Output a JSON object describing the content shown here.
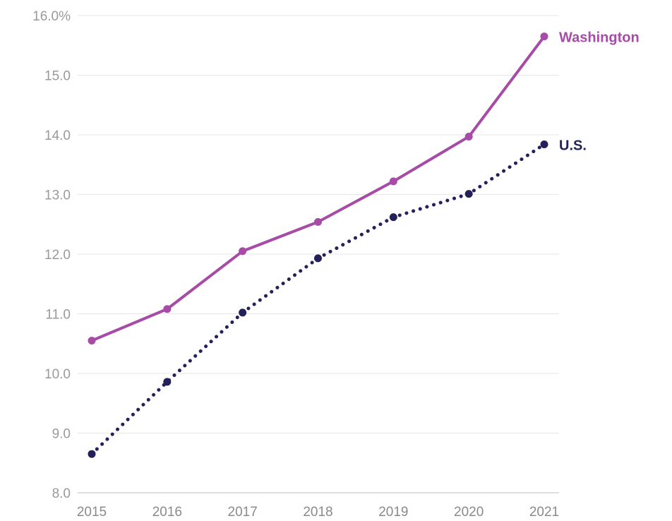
{
  "chart_data": {
    "type": "line",
    "x": [
      "2015",
      "2016",
      "2017",
      "2018",
      "2019",
      "2020",
      "2021"
    ],
    "ylim": [
      8.0,
      16.0
    ],
    "yticks": [
      8,
      9,
      10,
      11,
      12,
      13,
      14,
      15,
      16
    ],
    "ytick_labels": [
      "8.0",
      "9.0",
      "10.0",
      "11.0",
      "12.0",
      "13.0",
      "14.0",
      "15.0",
      "16.0%"
    ],
    "grid": "horizontal",
    "series": [
      {
        "name": "Washington",
        "values": [
          10.55,
          11.08,
          12.05,
          12.54,
          13.22,
          13.97,
          15.65
        ],
        "color": "#a64ca6",
        "style": "solid"
      },
      {
        "name": "U.S.",
        "values": [
          8.65,
          9.86,
          11.02,
          11.93,
          12.62,
          13.01,
          13.84
        ],
        "color": "#23205a",
        "style": "dotted"
      }
    ]
  }
}
